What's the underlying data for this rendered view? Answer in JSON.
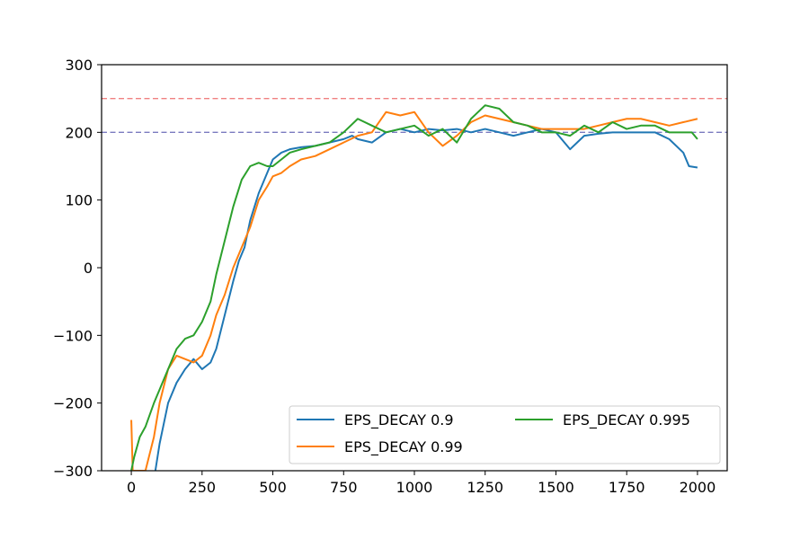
{
  "chart_data": {
    "type": "line",
    "title": "",
    "xlabel": "",
    "ylabel": "",
    "xlim": [
      -105,
      2105
    ],
    "ylim": [
      -300,
      300
    ],
    "xticks": [
      0,
      250,
      500,
      750,
      1000,
      1250,
      1500,
      1750,
      2000
    ],
    "yticks": [
      -300,
      -200,
      -100,
      0,
      100,
      200,
      300
    ],
    "xtick_labels": [
      "0",
      "250",
      "500",
      "750",
      "1000",
      "1250",
      "1500",
      "1750",
      "2000"
    ],
    "ytick_labels": [
      "−300",
      "−200",
      "−100",
      "0",
      "100",
      "200",
      "300"
    ],
    "grid": false,
    "legend_position": "lower-right",
    "reference_lines": [
      {
        "y": 250,
        "color": "#f08080",
        "style": "dashed"
      },
      {
        "y": 200,
        "color": "#7b7bc0",
        "style": "dashed"
      }
    ],
    "series": [
      {
        "name": "EPS_DECAY 0.9",
        "color": "#1f77b4",
        "x": [
          85,
          100,
          130,
          160,
          190,
          220,
          250,
          280,
          300,
          330,
          360,
          380,
          400,
          420,
          450,
          480,
          500,
          530,
          560,
          600,
          650,
          700,
          720,
          750,
          780,
          800,
          850,
          900,
          950,
          1000,
          1050,
          1100,
          1150,
          1200,
          1250,
          1300,
          1350,
          1400,
          1450,
          1500,
          1550,
          1600,
          1650,
          1700,
          1750,
          1800,
          1850,
          1900,
          1950,
          1970,
          2000
        ],
        "y": [
          -300,
          -260,
          -200,
          -170,
          -150,
          -135,
          -150,
          -140,
          -120,
          -70,
          -20,
          10,
          30,
          70,
          110,
          140,
          160,
          170,
          175,
          178,
          180,
          185,
          187,
          190,
          195,
          190,
          185,
          200,
          205,
          200,
          205,
          203,
          205,
          200,
          205,
          200,
          195,
          200,
          205,
          200,
          175,
          195,
          198,
          200,
          200,
          200,
          200,
          190,
          170,
          150,
          148
        ]
      },
      {
        "name": "EPS_DECAY 0.99",
        "color": "#ff7f0e",
        "x": [
          0,
          5,
          50,
          80,
          100,
          130,
          160,
          190,
          220,
          250,
          280,
          300,
          330,
          360,
          390,
          420,
          450,
          480,
          500,
          530,
          560,
          600,
          650,
          700,
          750,
          800,
          850,
          900,
          950,
          1000,
          1050,
          1100,
          1150,
          1200,
          1250,
          1300,
          1350,
          1400,
          1450,
          1500,
          1550,
          1600,
          1650,
          1700,
          1750,
          1800,
          1850,
          1900,
          1950,
          2000
        ],
        "y": [
          -225,
          -300,
          -300,
          -250,
          -200,
          -150,
          -130,
          -135,
          -140,
          -130,
          -100,
          -70,
          -40,
          0,
          30,
          60,
          100,
          120,
          135,
          140,
          150,
          160,
          165,
          175,
          185,
          195,
          200,
          230,
          225,
          230,
          200,
          180,
          195,
          215,
          225,
          220,
          215,
          210,
          205,
          205,
          205,
          205,
          210,
          215,
          220,
          220,
          215,
          210,
          215,
          220
        ]
      },
      {
        "name": "EPS_DECAY 0.995",
        "color": "#2ca02c",
        "x": [
          0,
          10,
          30,
          50,
          80,
          100,
          130,
          160,
          190,
          220,
          250,
          280,
          300,
          330,
          360,
          390,
          420,
          450,
          480,
          500,
          530,
          560,
          600,
          650,
          700,
          750,
          800,
          850,
          900,
          950,
          1000,
          1050,
          1100,
          1150,
          1200,
          1250,
          1300,
          1350,
          1400,
          1450,
          1500,
          1550,
          1600,
          1650,
          1700,
          1750,
          1800,
          1850,
          1900,
          1950,
          1980,
          2000
        ],
        "y": [
          -300,
          -280,
          -250,
          -235,
          -200,
          -180,
          -150,
          -120,
          -105,
          -100,
          -80,
          -50,
          -10,
          40,
          90,
          130,
          150,
          155,
          150,
          150,
          160,
          170,
          175,
          180,
          185,
          200,
          220,
          210,
          200,
          205,
          210,
          195,
          205,
          185,
          220,
          240,
          235,
          215,
          210,
          200,
          200,
          195,
          210,
          200,
          215,
          205,
          210,
          210,
          200,
          200,
          200,
          190
        ]
      }
    ]
  }
}
